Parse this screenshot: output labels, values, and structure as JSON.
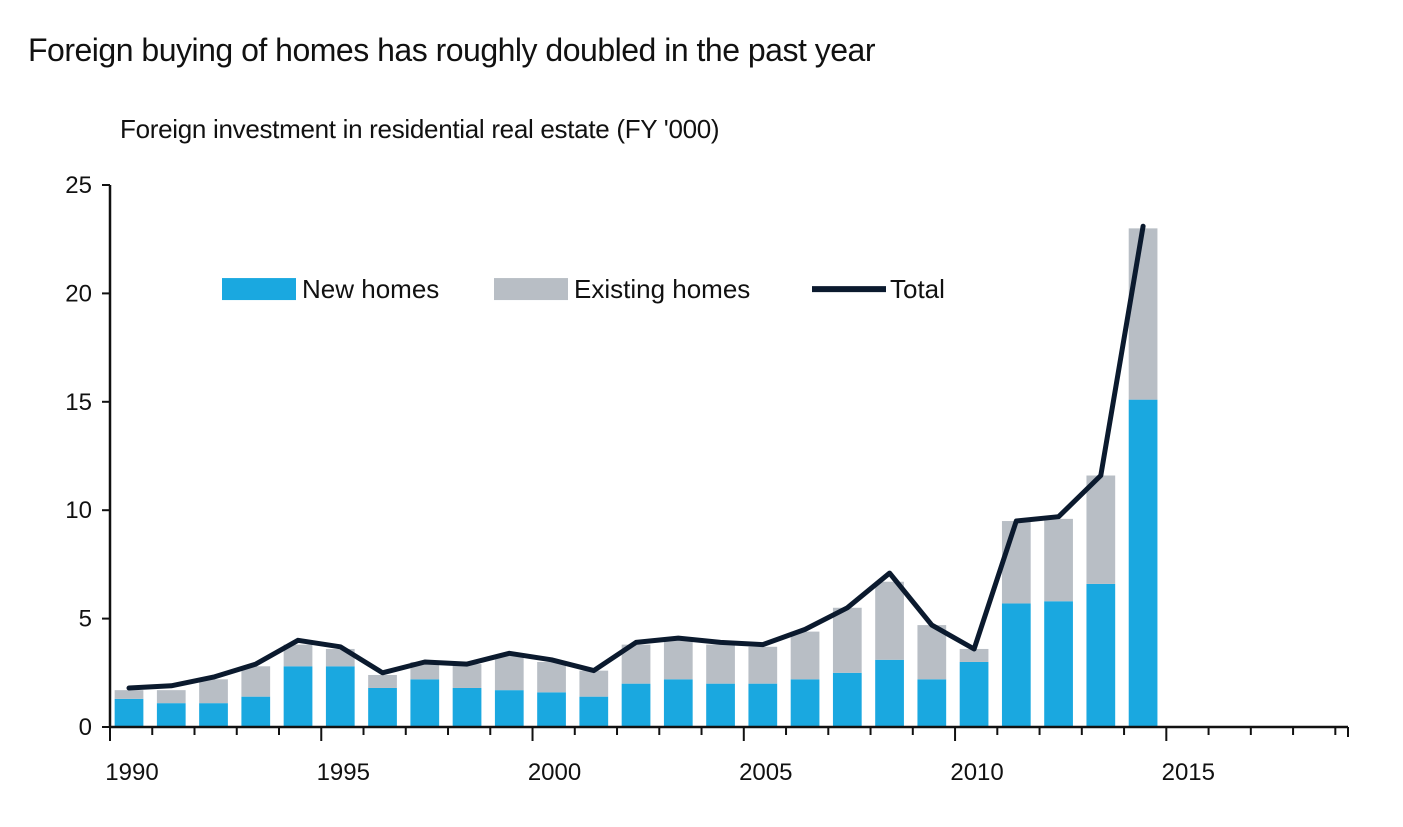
{
  "title": "Foreign buying of homes has roughly doubled in the past year",
  "colors": {
    "new_homes": "#1aa8e0",
    "existing_homes": "#b8bec5",
    "total": "#0b1a2e",
    "axis": "#111111"
  },
  "chart_data": {
    "type": "bar",
    "stacked": true,
    "subtitle": "Foreign investment in residential real estate (FY '000)",
    "x": [
      1990,
      1991,
      1992,
      1993,
      1994,
      1995,
      1996,
      1997,
      1998,
      1999,
      2000,
      2001,
      2002,
      2003,
      2004,
      2005,
      2006,
      2007,
      2008,
      2009,
      2010,
      2011,
      2012,
      2013,
      2014
    ],
    "series": [
      {
        "name": "New homes",
        "type": "bar",
        "values": [
          1.3,
          1.1,
          1.1,
          1.4,
          2.8,
          2.8,
          1.8,
          2.2,
          1.8,
          1.7,
          1.6,
          1.4,
          2.0,
          2.2,
          2.0,
          2.0,
          2.2,
          2.5,
          3.1,
          2.2,
          3.0,
          5.7,
          5.8,
          6.6,
          15.1
        ]
      },
      {
        "name": "Existing homes",
        "type": "bar",
        "values": [
          0.4,
          0.6,
          1.1,
          1.4,
          1.0,
          0.8,
          0.6,
          0.8,
          1.1,
          1.6,
          1.4,
          1.2,
          1.8,
          1.8,
          1.8,
          1.7,
          2.2,
          3.0,
          3.6,
          2.5,
          0.6,
          3.8,
          3.8,
          5.0,
          7.9
        ]
      },
      {
        "name": "Total",
        "type": "line",
        "values": [
          1.8,
          1.9,
          2.3,
          2.9,
          4.0,
          3.7,
          2.5,
          3.0,
          2.9,
          3.4,
          3.1,
          2.6,
          3.9,
          4.1,
          3.9,
          3.8,
          4.5,
          5.5,
          7.1,
          4.7,
          3.6,
          9.5,
          9.7,
          11.6,
          23.1
        ]
      }
    ],
    "xlim": [
      1990,
      2019.3
    ],
    "ylim": [
      0,
      25
    ],
    "yticks": [
      0,
      5,
      10,
      15,
      20,
      25
    ],
    "xticks": [
      1990,
      1995,
      2000,
      2005,
      2010,
      2015
    ],
    "legend": "top-left",
    "grid": false
  }
}
